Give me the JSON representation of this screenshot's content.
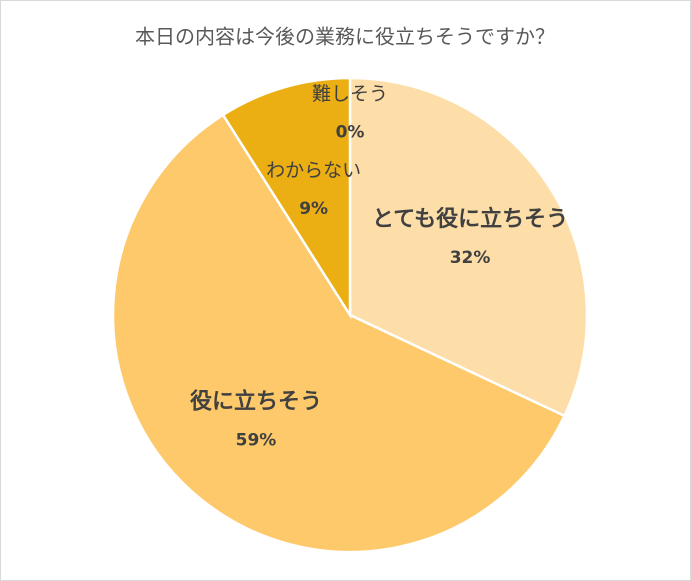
{
  "chart_data": {
    "type": "pie",
    "title": "本日の内容は今後の業務に役立ちそうですか？",
    "categories": [
      "とても役に立ちそう",
      "役に立ちそう",
      "わからない",
      "難しそう"
    ],
    "values": [
      32,
      59,
      9,
      0
    ],
    "value_labels": [
      "32%",
      "59%",
      "9%",
      "0%"
    ],
    "colors": [
      "#fddda8",
      "#fdc96b",
      "#ebaf14",
      "#d99a00"
    ]
  }
}
